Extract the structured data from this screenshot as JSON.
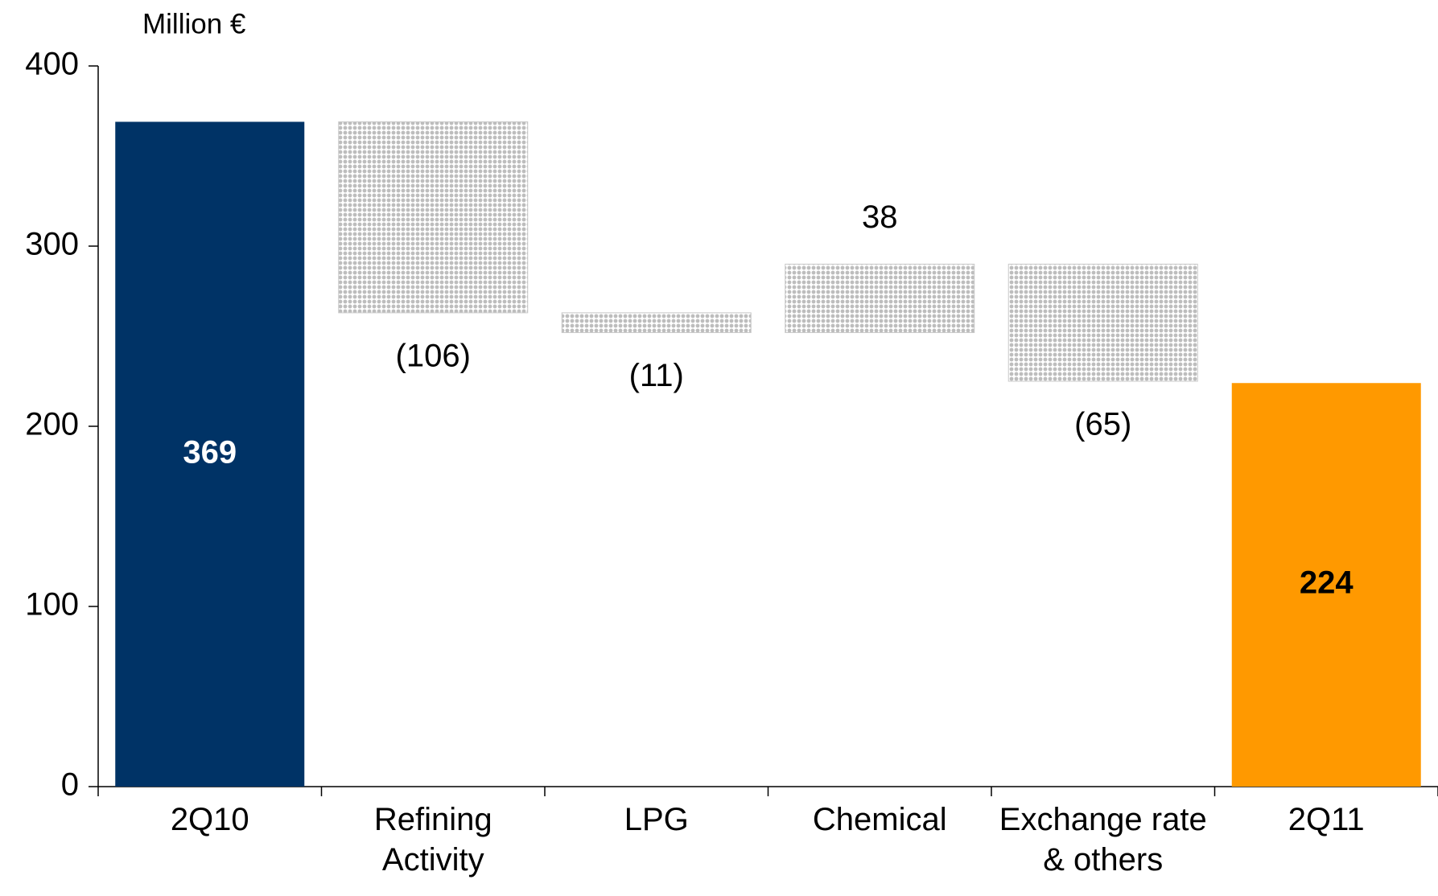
{
  "chart_data": {
    "type": "waterfall",
    "ylabel": "Million €",
    "categories": [
      "2Q10",
      "Refining Activity",
      "LPG",
      "Chemical",
      "Exchange rate & others",
      "2Q11"
    ],
    "values": [
      369,
      -106,
      -11,
      38,
      -65,
      224
    ],
    "value_labels": [
      "369",
      "(106)",
      "(11)",
      "38",
      "(65)",
      "224"
    ],
    "colors": [
      "#003366",
      "#c8c8c8",
      "#c8c8c8",
      "#c8c8c8",
      "#c8c8c8",
      "#ff9900"
    ],
    "ylim": [
      0,
      400
    ],
    "yticks": [
      0,
      100,
      200,
      300,
      400
    ],
    "grid": false
  }
}
